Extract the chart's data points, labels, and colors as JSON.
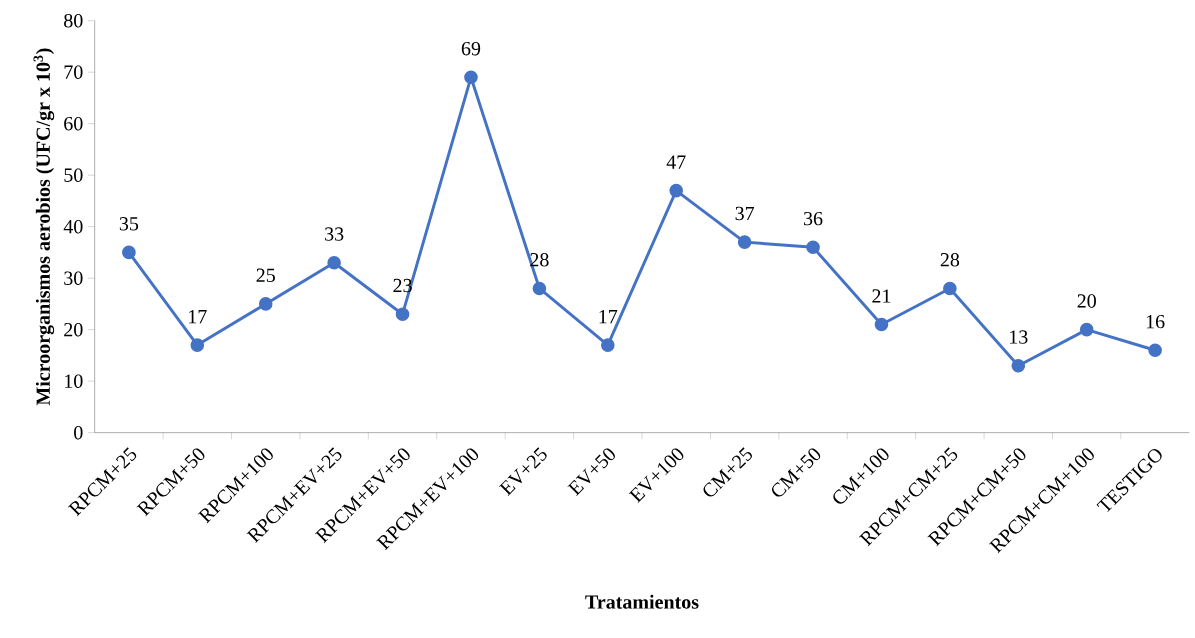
{
  "chart_data": {
    "type": "line",
    "xlabel": "Tratamientos",
    "ylabel": "Microorganismos aerobios (UFC/gr x 10$^{3}$)",
    "categories": [
      "RPCM+25",
      "RPCM+50",
      "RPCM+100",
      "RPCM+EV+25",
      "RPCM+EV+50",
      "RPCM+EV+100",
      "EV+25",
      "EV+50",
      "EV+100",
      "CM+25",
      "CM+50",
      "CM+100",
      "RPCM+CM+25",
      "RPCM+CM+50",
      "RPCM+CM+100",
      "TESTIGO"
    ],
    "values": [
      35,
      17,
      25,
      33,
      23,
      69,
      28,
      17,
      47,
      37,
      36,
      21,
      28,
      13,
      20,
      16
    ],
    "color": "#4472c4",
    "ylim": [
      0,
      80
    ],
    "yticks": [
      0,
      10,
      20,
      30,
      40,
      50,
      60,
      70,
      80
    ],
    "marker": "circle",
    "line_style": "solid",
    "data_labels": true
  }
}
